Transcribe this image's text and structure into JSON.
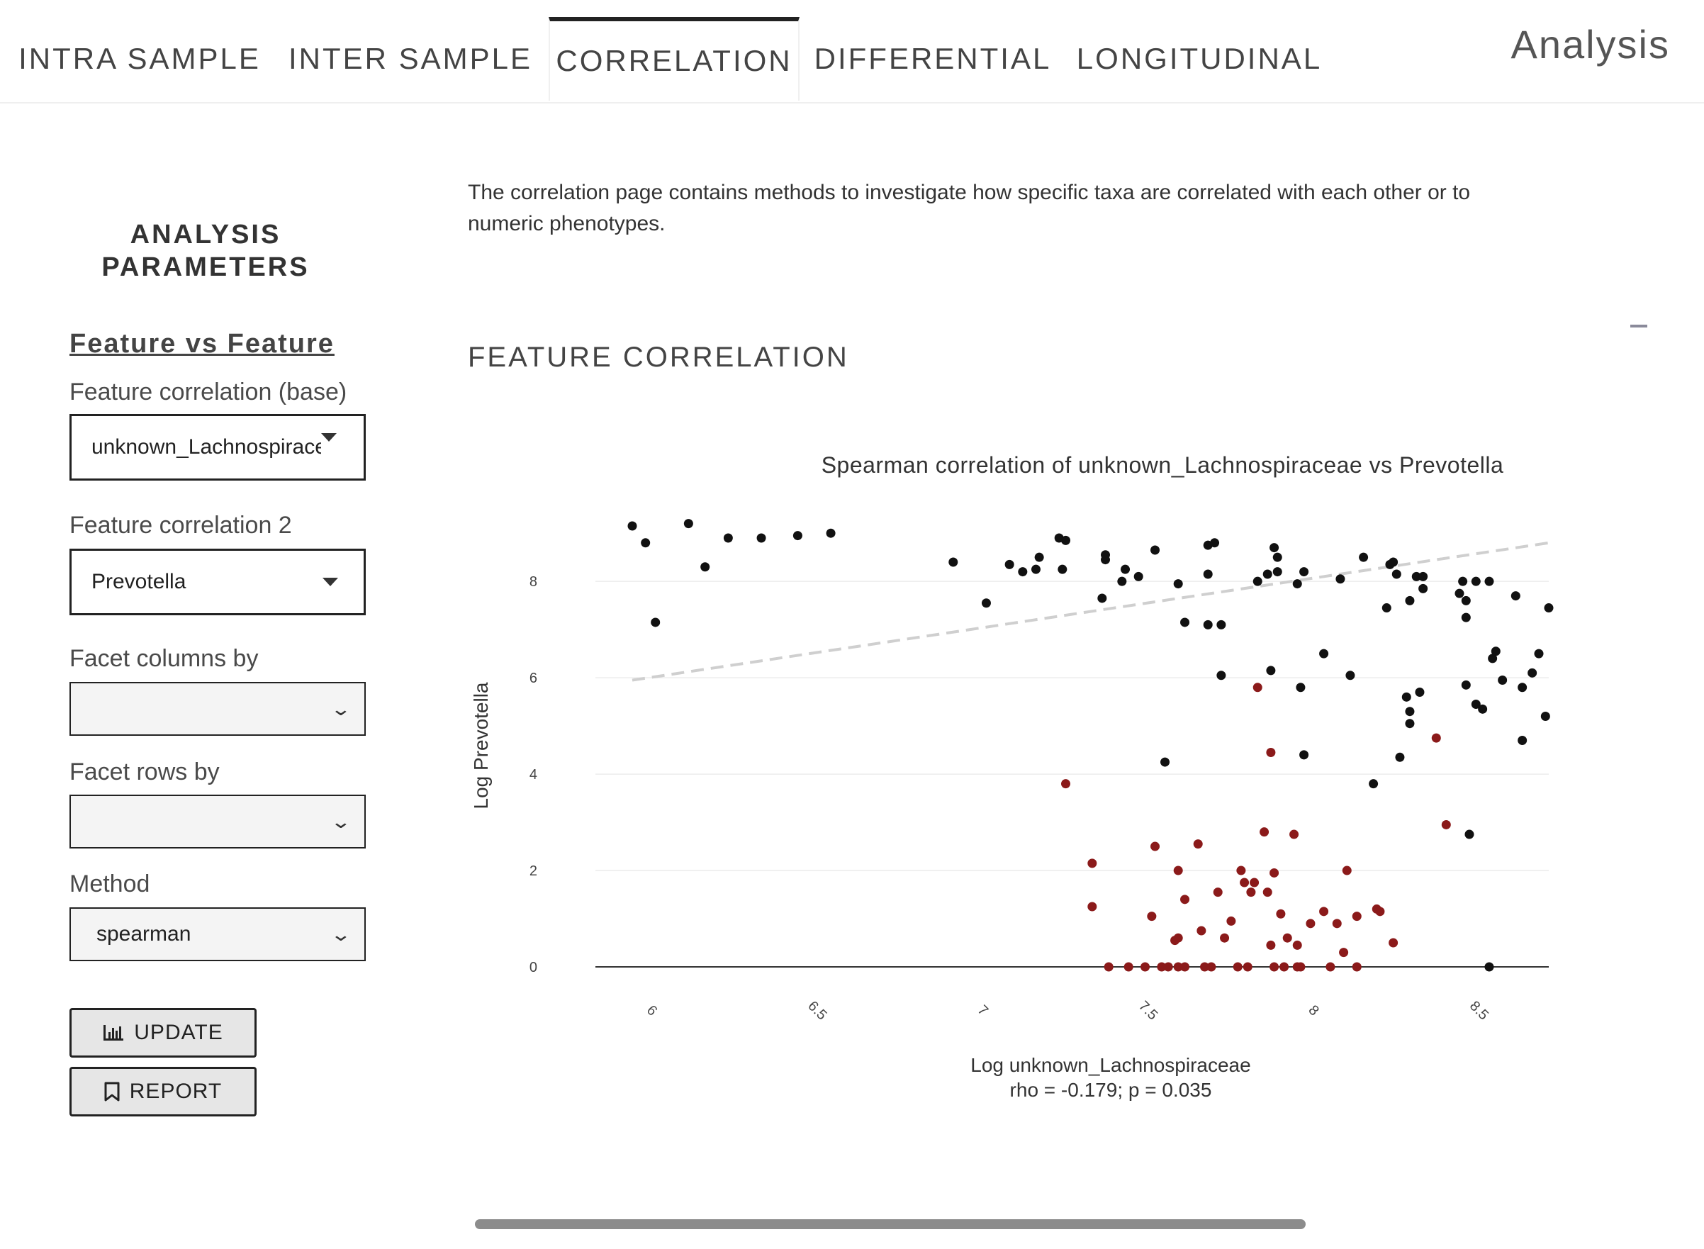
{
  "nav": {
    "tabs": [
      {
        "label": "INTRA SAMPLE"
      },
      {
        "label": "INTER SAMPLE"
      },
      {
        "label": "CORRELATION",
        "active": true
      },
      {
        "label": "DIFFERENTIAL"
      },
      {
        "label": "LONGITUDINAL"
      }
    ],
    "brand": "Analysis"
  },
  "sidebar": {
    "title": "ANALYSIS PARAMETERS",
    "section_link": "Feature vs Feature",
    "fields": {
      "base_label": "Feature correlation (base)",
      "base_value": "unknown_Lachnospiraceae",
      "second_label": "Feature correlation 2",
      "second_value": "Prevotella",
      "facet_cols_label": "Facet columns by",
      "facet_cols_value": "",
      "facet_rows_label": "Facet rows by",
      "facet_rows_value": "",
      "method_label": "Method",
      "method_value": "spearman"
    },
    "buttons": {
      "update": "UPDATE",
      "report": "REPORT"
    }
  },
  "main": {
    "description": "The correlation page contains methods to investigate how specific taxa are correlated with each other or to numeric phenotypes.",
    "chart_heading": "FEATURE CORRELATION"
  },
  "colors": {
    "above": "#111111",
    "below": "#8b1a1a",
    "trend": "#cfcfcf"
  },
  "chart_data": {
    "type": "scatter",
    "title": "Spearman correlation of unknown_Lachnospiraceae vs Prevotella",
    "xlabel": "Log unknown_Lachnospiraceae",
    "ylabel": "Log Prevotella",
    "stats": "rho = -0.179; p = 0.035",
    "xlim": [
      5.86,
      8.72
    ],
    "ylim": [
      0,
      9.4
    ],
    "xticks": [
      "6",
      "6.5",
      "7",
      "7.5",
      "8",
      "8.5"
    ],
    "yticks": [
      "0",
      "2",
      "4",
      "6",
      "8"
    ],
    "trendline": {
      "x": [
        5.95,
        8.72
      ],
      "y": [
        5.95,
        8.8
      ]
    },
    "series": [
      {
        "group": "above",
        "points": [
          [
            5.95,
            9.15
          ],
          [
            5.99,
            8.8
          ],
          [
            6.02,
            7.15
          ],
          [
            6.12,
            9.2
          ],
          [
            6.17,
            8.3
          ],
          [
            6.24,
            8.9
          ],
          [
            6.34,
            8.9
          ],
          [
            6.45,
            8.95
          ],
          [
            6.55,
            9.0
          ],
          [
            6.92,
            8.4
          ],
          [
            7.02,
            7.55
          ],
          [
            7.09,
            8.35
          ],
          [
            7.13,
            8.2
          ],
          [
            7.17,
            8.25
          ],
          [
            7.18,
            8.5
          ],
          [
            7.24,
            8.9
          ],
          [
            7.26,
            8.85
          ],
          [
            7.25,
            8.25
          ],
          [
            7.37,
            7.65
          ],
          [
            7.38,
            8.55
          ],
          [
            7.38,
            8.45
          ],
          [
            7.43,
            8.0
          ],
          [
            7.44,
            8.25
          ],
          [
            7.48,
            8.1
          ],
          [
            7.53,
            8.65
          ],
          [
            7.56,
            4.25
          ],
          [
            7.6,
            7.95
          ],
          [
            7.62,
            7.15
          ],
          [
            7.69,
            8.15
          ],
          [
            7.69,
            8.75
          ],
          [
            7.71,
            8.8
          ],
          [
            7.69,
            7.1
          ],
          [
            7.73,
            7.1
          ],
          [
            7.73,
            6.05
          ],
          [
            7.84,
            8.0
          ],
          [
            7.87,
            8.15
          ],
          [
            7.89,
            8.7
          ],
          [
            7.9,
            8.5
          ],
          [
            7.9,
            8.2
          ],
          [
            7.88,
            6.15
          ],
          [
            7.96,
            7.95
          ],
          [
            7.98,
            8.2
          ],
          [
            7.97,
            5.8
          ],
          [
            7.98,
            4.4
          ],
          [
            8.04,
            6.5
          ],
          [
            8.09,
            8.05
          ],
          [
            8.12,
            6.05
          ],
          [
            8.16,
            8.5
          ],
          [
            8.19,
            3.8
          ],
          [
            8.23,
            7.45
          ],
          [
            8.24,
            8.35
          ],
          [
            8.25,
            8.4
          ],
          [
            8.26,
            8.15
          ],
          [
            8.27,
            4.35
          ],
          [
            8.29,
            5.6
          ],
          [
            8.3,
            7.6
          ],
          [
            8.3,
            5.3
          ],
          [
            8.3,
            5.05
          ],
          [
            8.32,
            8.1
          ],
          [
            8.33,
            5.7
          ],
          [
            8.34,
            7.85
          ],
          [
            8.34,
            8.1
          ],
          [
            8.45,
            7.75
          ],
          [
            8.46,
            8.0
          ],
          [
            8.47,
            7.25
          ],
          [
            8.47,
            7.6
          ],
          [
            8.47,
            5.85
          ],
          [
            8.48,
            2.75
          ],
          [
            8.5,
            8.0
          ],
          [
            8.5,
            5.45
          ],
          [
            8.52,
            5.35
          ],
          [
            8.54,
            8.0
          ],
          [
            8.55,
            6.4
          ],
          [
            8.56,
            6.55
          ],
          [
            8.58,
            5.95
          ],
          [
            8.62,
            7.7
          ],
          [
            8.64,
            5.8
          ],
          [
            8.64,
            4.7
          ],
          [
            8.67,
            6.1
          ],
          [
            8.69,
            6.5
          ],
          [
            8.71,
            5.2
          ],
          [
            8.72,
            7.45
          ],
          [
            8.54,
            0.0
          ]
        ]
      },
      {
        "group": "below",
        "points": [
          [
            7.26,
            3.8
          ],
          [
            7.34,
            2.15
          ],
          [
            7.34,
            1.25
          ],
          [
            7.39,
            0.0
          ],
          [
            7.45,
            0.0
          ],
          [
            7.5,
            0.0
          ],
          [
            7.52,
            1.05
          ],
          [
            7.53,
            2.5
          ],
          [
            7.55,
            0.0
          ],
          [
            7.57,
            0.0
          ],
          [
            7.59,
            0.55
          ],
          [
            7.6,
            0.6
          ],
          [
            7.6,
            2.0
          ],
          [
            7.62,
            1.4
          ],
          [
            7.6,
            0.0
          ],
          [
            7.62,
            0.0
          ],
          [
            7.66,
            2.55
          ],
          [
            7.67,
            0.75
          ],
          [
            7.68,
            0.0
          ],
          [
            7.7,
            0.0
          ],
          [
            7.72,
            1.55
          ],
          [
            7.74,
            0.6
          ],
          [
            7.76,
            0.95
          ],
          [
            7.78,
            0.0
          ],
          [
            7.79,
            2.0
          ],
          [
            7.8,
            1.75
          ],
          [
            7.82,
            1.55
          ],
          [
            7.81,
            0.0
          ],
          [
            7.83,
            1.75
          ],
          [
            7.84,
            5.8
          ],
          [
            7.86,
            2.8
          ],
          [
            7.87,
            1.55
          ],
          [
            7.88,
            4.45
          ],
          [
            7.89,
            1.95
          ],
          [
            7.89,
            0.0
          ],
          [
            7.88,
            0.45
          ],
          [
            7.91,
            1.1
          ],
          [
            7.92,
            0.0
          ],
          [
            7.93,
            0.6
          ],
          [
            7.95,
            2.75
          ],
          [
            7.96,
            0.0
          ],
          [
            7.97,
            0.0
          ],
          [
            7.96,
            0.45
          ],
          [
            8.0,
            0.9
          ],
          [
            8.04,
            1.15
          ],
          [
            8.06,
            0.0
          ],
          [
            8.08,
            0.9
          ],
          [
            8.1,
            0.3
          ],
          [
            8.11,
            2.0
          ],
          [
            8.14,
            1.05
          ],
          [
            8.14,
            0.0
          ],
          [
            8.2,
            1.2
          ],
          [
            8.21,
            1.15
          ],
          [
            8.25,
            0.5
          ],
          [
            8.38,
            4.75
          ],
          [
            8.41,
            2.95
          ]
        ]
      }
    ]
  }
}
